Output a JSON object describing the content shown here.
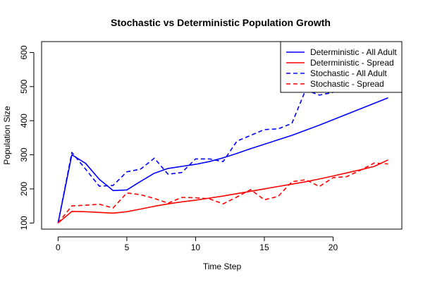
{
  "chart_data": {
    "type": "line",
    "title": "Stochastic vs Deterministic Population Growth",
    "xlabel": "Time Step",
    "ylabel": "Population Size",
    "xlim": [
      -1.2,
      25
    ],
    "ylim": [
      82,
      632
    ],
    "xticks": [
      0,
      5,
      10,
      15,
      20
    ],
    "yticks": [
      100,
      200,
      300,
      400,
      500,
      600
    ],
    "legend_position": "top-right",
    "grid": false,
    "series": [
      {
        "name": "Deterministic - All Adult",
        "color": "#0000FF",
        "dash": "solid",
        "x": [
          0,
          1,
          2,
          3,
          4,
          5,
          6,
          7,
          8,
          9,
          10,
          11,
          12,
          13,
          14,
          15,
          16,
          17,
          18,
          19,
          20,
          21,
          22,
          23,
          24
        ],
        "values": [
          100,
          300,
          275,
          228,
          195,
          197,
          222,
          246,
          260,
          266,
          272,
          280,
          291,
          304,
          318,
          331,
          344,
          357,
          372,
          387,
          403,
          419,
          435,
          451,
          467
        ]
      },
      {
        "name": "Deterministic - Spread",
        "color": "#FF0000",
        "dash": "solid",
        "x": [
          0,
          1,
          2,
          3,
          4,
          5,
          6,
          7,
          8,
          9,
          10,
          11,
          12,
          13,
          14,
          15,
          16,
          17,
          18,
          19,
          20,
          21,
          22,
          23,
          24
        ],
        "values": [
          100,
          134,
          133,
          131,
          129,
          133,
          141,
          149,
          156,
          162,
          167,
          173,
          179,
          186,
          193,
          200,
          207,
          214,
          221,
          229,
          238,
          247,
          256,
          266,
          285
        ]
      },
      {
        "name": "Stochastic - All Adult",
        "color": "#0000FF",
        "dash": "dashed",
        "x": [
          0,
          1,
          2,
          3,
          4,
          5,
          6,
          7,
          8,
          9,
          10,
          11,
          12,
          13,
          14,
          15,
          16,
          17,
          18,
          19,
          20
        ],
        "values": [
          100,
          307,
          258,
          208,
          210,
          250,
          258,
          290,
          243,
          248,
          288,
          288,
          280,
          340,
          357,
          374,
          376,
          392,
          490,
          475,
          483
        ]
      },
      {
        "name": "Stochastic - Spread",
        "color": "#FF0000",
        "dash": "dashed",
        "x": [
          0,
          1,
          2,
          3,
          4,
          5,
          6,
          7,
          8,
          9,
          10,
          11,
          12,
          13,
          14,
          15,
          16,
          17,
          18,
          19,
          20,
          21,
          22,
          23,
          24
        ],
        "values": [
          100,
          150,
          152,
          155,
          144,
          188,
          183,
          172,
          158,
          175,
          174,
          171,
          156,
          176,
          198,
          168,
          178,
          221,
          227,
          207,
          233,
          236,
          255,
          276,
          273
        ]
      }
    ]
  }
}
